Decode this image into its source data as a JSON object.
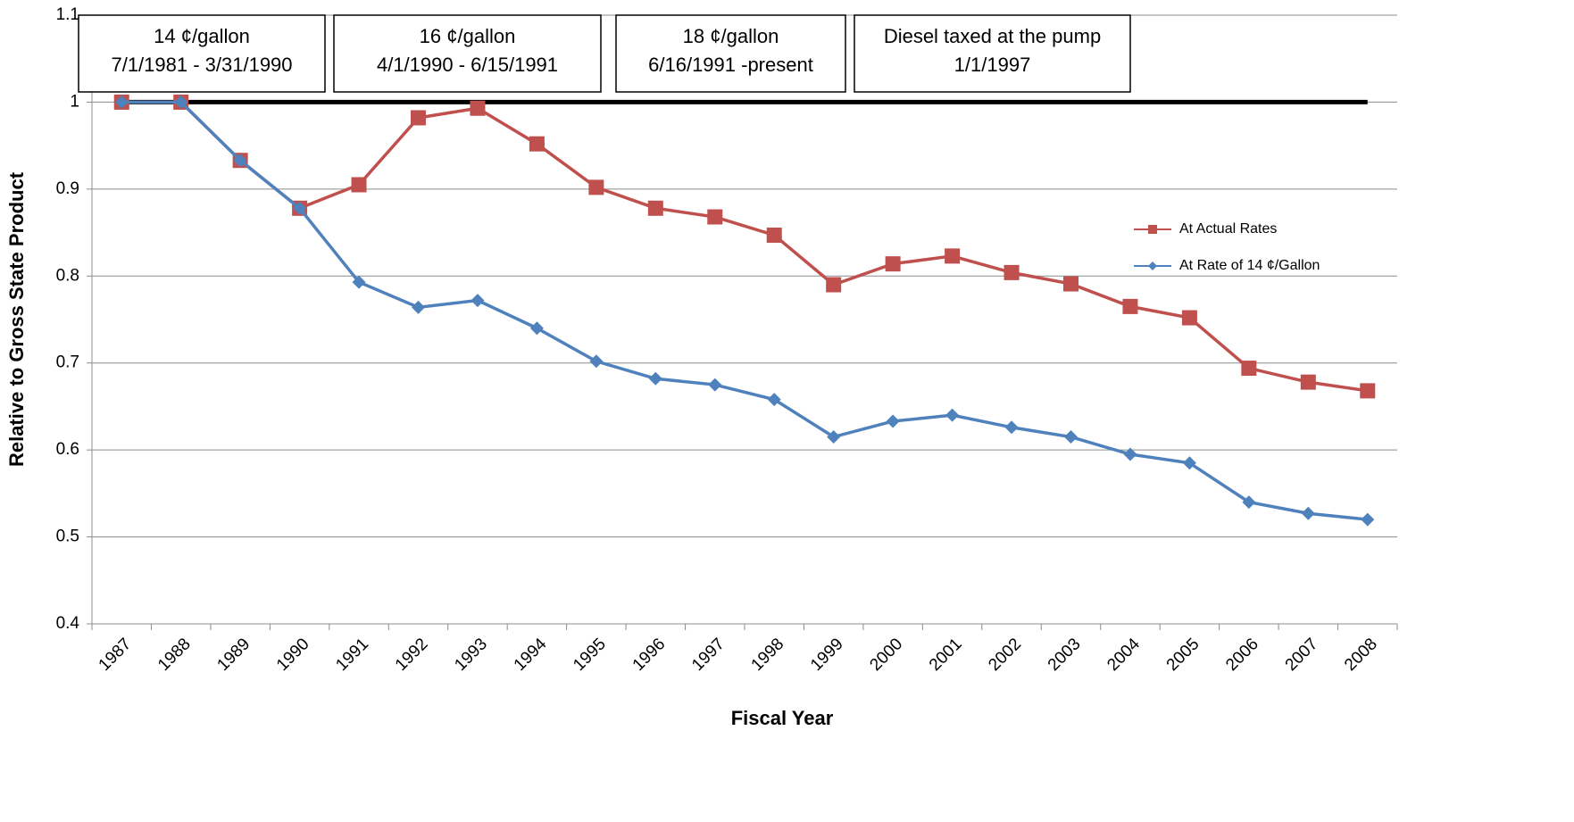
{
  "chart_data": {
    "type": "line",
    "x_label": "Fiscal Year",
    "y_label": "Relative to Gross State Product",
    "categories": [
      "1987",
      "1988",
      "1989",
      "1990",
      "1991",
      "1992",
      "1993",
      "1994",
      "1995",
      "1996",
      "1997",
      "1998",
      "1999",
      "2000",
      "2001",
      "2002",
      "2003",
      "2004",
      "2005",
      "2006",
      "2007",
      "2008"
    ],
    "series": [
      {
        "name": "At Actual Rates",
        "color": "#c0504d",
        "marker": "square",
        "values": [
          1.0,
          1.0,
          0.933,
          0.878,
          0.905,
          0.982,
          0.993,
          0.952,
          0.902,
          0.878,
          0.868,
          0.847,
          0.79,
          0.814,
          0.823,
          0.804,
          0.791,
          0.765,
          0.752,
          0.694,
          0.678,
          0.668
        ]
      },
      {
        "name": "At Rate of 14 ¢/Gallon",
        "color": "#4f81bd",
        "marker": "diamond",
        "values": [
          1.0,
          1.0,
          0.933,
          0.878,
          0.793,
          0.764,
          0.772,
          0.74,
          0.702,
          0.682,
          0.675,
          0.658,
          0.615,
          0.633,
          0.64,
          0.626,
          0.615,
          0.595,
          0.585,
          0.54,
          0.527,
          0.52
        ]
      }
    ],
    "reference_line": {
      "value": 1,
      "color": "#000000"
    },
    "annotations": [
      {
        "lines": [
          "14 ¢/gallon",
          "7/1/1981 - 3/31/1990"
        ]
      },
      {
        "lines": [
          "16 ¢/gallon",
          "4/1/1990 - 6/15/1991"
        ]
      },
      {
        "lines": [
          "18 ¢/gallon",
          "6/16/1991 -present"
        ]
      },
      {
        "lines": [
          "Diesel taxed at the pump",
          "1/1/1997"
        ]
      }
    ],
    "ylim": [
      0.4,
      1.1
    ],
    "yticks": [
      0.4,
      0.5,
      0.6,
      0.7,
      0.8,
      0.9,
      1,
      1.1
    ],
    "grid": true,
    "legend": "right"
  }
}
